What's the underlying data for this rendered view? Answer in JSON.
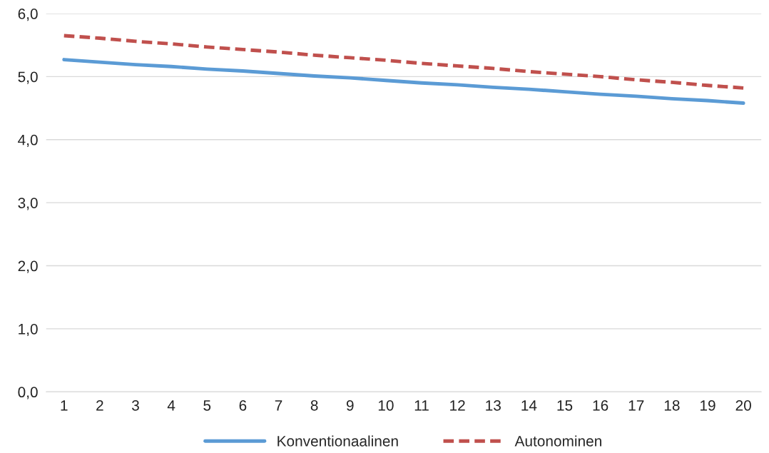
{
  "chart_data": {
    "type": "line",
    "categories": [
      "1",
      "2",
      "3",
      "4",
      "5",
      "6",
      "7",
      "8",
      "9",
      "10",
      "11",
      "12",
      "13",
      "14",
      "15",
      "16",
      "17",
      "18",
      "19",
      "20"
    ],
    "series": [
      {
        "name": "Konventionaalinen",
        "color": "#5b9bd5",
        "line_style": "solid",
        "values": [
          5.27,
          5.23,
          5.19,
          5.16,
          5.12,
          5.09,
          5.05,
          5.01,
          4.98,
          4.94,
          4.9,
          4.87,
          4.83,
          4.8,
          4.76,
          4.72,
          4.69,
          4.65,
          4.62,
          4.58
        ]
      },
      {
        "name": "Autonominen",
        "color": "#c0504d",
        "line_style": "dashed",
        "values": [
          5.65,
          5.61,
          5.56,
          5.52,
          5.47,
          5.43,
          5.39,
          5.34,
          5.3,
          5.26,
          5.21,
          5.17,
          5.13,
          5.08,
          5.04,
          5.0,
          4.95,
          4.91,
          4.86,
          4.82
        ]
      }
    ],
    "ylim": [
      0,
      6
    ],
    "yticks": [
      {
        "value": 0,
        "label": "0,0"
      },
      {
        "value": 1,
        "label": "1,0"
      },
      {
        "value": 2,
        "label": "2,0"
      },
      {
        "value": 3,
        "label": "3,0"
      },
      {
        "value": 4,
        "label": "4,0"
      },
      {
        "value": 5,
        "label": "5,0"
      },
      {
        "value": 6,
        "label": "6,0"
      }
    ],
    "grid": "y",
    "legend": "bottom",
    "marker": "none"
  }
}
